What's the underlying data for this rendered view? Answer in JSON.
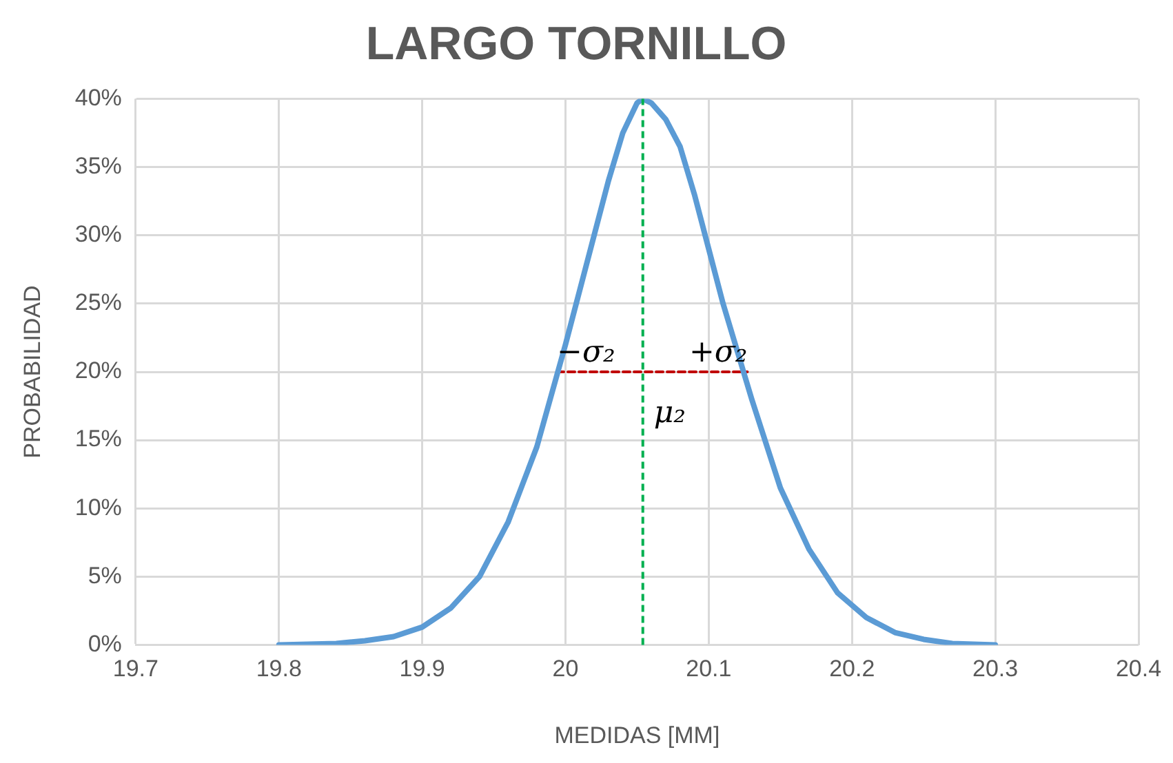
{
  "chart_data": {
    "type": "line",
    "title": "LARGO TORNILLO",
    "xlabel": "MEDIDAS [MM]",
    "ylabel": "PROBABILIDAD",
    "series": [
      {
        "color": "#5b9bd5",
        "x": [
          19.8,
          19.84,
          19.86,
          19.88,
          19.9,
          19.92,
          19.94,
          19.96,
          19.98,
          20.0,
          20.02,
          20.03,
          20.04,
          20.05,
          20.054,
          20.06,
          20.07,
          20.08,
          20.09,
          20.1,
          20.11,
          20.13,
          20.15,
          20.17,
          20.19,
          20.21,
          20.23,
          20.25,
          20.27,
          20.3
        ],
        "values": [
          0,
          0.1,
          0.3,
          0.6,
          1.3,
          2.7,
          5,
          9,
          14.5,
          22,
          30,
          34,
          37.5,
          39.7,
          40,
          39.7,
          38.5,
          36.5,
          33,
          29,
          25,
          18,
          11.5,
          7,
          3.8,
          2,
          0.9,
          0.4,
          0.1,
          0
        ]
      },
      {
        "type": "line",
        "color": "#c00000",
        "line_style": "dashed",
        "x": [
          19.994,
          20.127
        ],
        "values": [
          20,
          20
        ]
      }
    ],
    "ref_lines": [
      {
        "axis": "x",
        "value": 20.054,
        "color": "#00b050",
        "line_style": "dashed"
      }
    ],
    "annotations": [
      {
        "text": "−σ₂",
        "x": 19.994,
        "y": 20
      },
      {
        "text": "+σ₂",
        "x": 20.127,
        "y": 20
      },
      {
        "text": "μ₂",
        "x": 20.054,
        "y": 20
      }
    ],
    "xlim": [
      19.7,
      20.4
    ],
    "xticks": [
      19.7,
      19.8,
      19.9,
      20,
      20.1,
      20.2,
      20.3,
      20.4
    ],
    "ylim": [
      0,
      40
    ],
    "yticks": [
      {
        "value": 0,
        "label": "0%"
      },
      {
        "value": 5,
        "label": "5%"
      },
      {
        "value": 10,
        "label": "10%"
      },
      {
        "value": 15,
        "label": "15%"
      },
      {
        "value": 20,
        "label": "20%"
      },
      {
        "value": 25,
        "label": "25%"
      },
      {
        "value": 30,
        "label": "30%"
      },
      {
        "value": 35,
        "label": "35%"
      },
      {
        "value": 40,
        "label": "40%"
      }
    ],
    "grid": true,
    "legend": false,
    "marker": "none",
    "line_style": "solid"
  }
}
